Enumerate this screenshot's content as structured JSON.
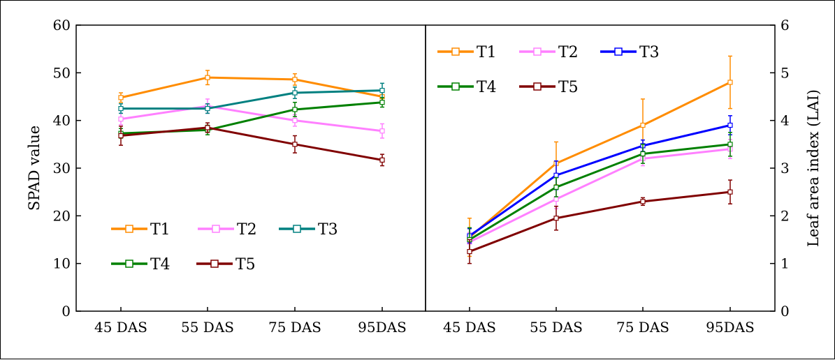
{
  "chart_data": [
    {
      "type": "line",
      "ylabel": "SPAD value",
      "ylim": [
        0,
        60
      ],
      "yticks": [
        "0",
        "10",
        "20",
        "30",
        "40",
        "50",
        "60"
      ],
      "categories": [
        "45 DAS",
        "55 DAS",
        "75 DAS",
        "95DAS"
      ],
      "legend_position": "bottom-left",
      "series": [
        {
          "name": "T1",
          "color": "#ff8c00",
          "values": [
            44.8,
            49.0,
            48.6,
            45.0
          ],
          "errors": [
            1.0,
            1.5,
            1.2,
            1.0
          ]
        },
        {
          "name": "T2",
          "color": "#ff80ff",
          "values": [
            40.3,
            43.0,
            40.0,
            37.8
          ],
          "errors": [
            1.2,
            1.5,
            1.2,
            1.5
          ]
        },
        {
          "name": "T3",
          "color": "#008080",
          "values": [
            42.5,
            42.5,
            45.8,
            46.3
          ],
          "errors": [
            1.0,
            1.0,
            1.2,
            1.5
          ]
        },
        {
          "name": "T4",
          "color": "#008000",
          "values": [
            37.3,
            38.0,
            42.3,
            43.8
          ],
          "errors": [
            1.0,
            1.0,
            1.5,
            1.0
          ]
        },
        {
          "name": "T5",
          "color": "#800000",
          "values": [
            36.8,
            38.5,
            35.0,
            31.7
          ],
          "errors": [
            2.0,
            1.0,
            1.8,
            1.2
          ]
        }
      ]
    },
    {
      "type": "line",
      "ylabel": "Leaf area index (LAI)",
      "ylim": [
        0,
        6
      ],
      "yticks": [
        "0",
        "1",
        "2",
        "3",
        "4",
        "5",
        "6"
      ],
      "categories": [
        "45 DAS",
        "55 DAS",
        "75 DAS",
        "95DAS"
      ],
      "legend_position": "top-left",
      "series": [
        {
          "name": "T1",
          "color": "#ff8c00",
          "values": [
            1.55,
            3.1,
            3.9,
            4.8
          ],
          "errors": [
            0.4,
            0.45,
            0.55,
            0.55
          ]
        },
        {
          "name": "T2",
          "color": "#ff80ff",
          "values": [
            1.45,
            2.35,
            3.2,
            3.4
          ],
          "errors": [
            0.2,
            0.2,
            0.15,
            0.2
          ]
        },
        {
          "name": "T3",
          "color": "#0000ff",
          "values": [
            1.58,
            2.85,
            3.47,
            3.9
          ],
          "errors": [
            0.15,
            0.3,
            0.12,
            0.2
          ]
        },
        {
          "name": "T4",
          "color": "#008000",
          "values": [
            1.5,
            2.6,
            3.3,
            3.5
          ],
          "errors": [
            0.25,
            0.2,
            0.2,
            0.25
          ]
        },
        {
          "name": "T5",
          "color": "#800000",
          "values": [
            1.25,
            1.95,
            2.3,
            2.5
          ],
          "errors": [
            0.25,
            0.25,
            0.08,
            0.25
          ]
        }
      ]
    }
  ]
}
